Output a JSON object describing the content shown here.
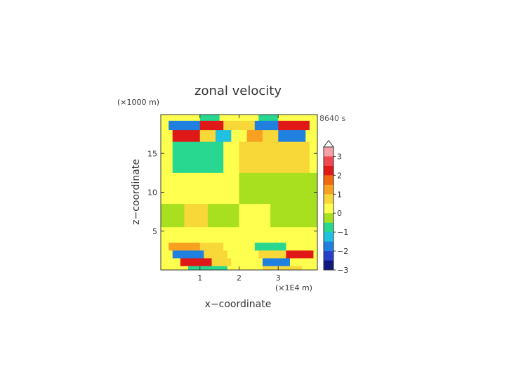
{
  "chart_data": {
    "type": "heatmap",
    "title": "zonal velocity",
    "xlabel": "x−coordinate",
    "ylabel": "z−coordinate",
    "x_unit": "(×1E4 m)",
    "y_unit": "(×1000 m)",
    "time_label": "8640 s",
    "xlim": [
      0,
      4
    ],
    "ylim": [
      0,
      20
    ],
    "x_ticks": [
      1,
      2,
      3
    ],
    "y_ticks": [
      5,
      10,
      15
    ],
    "colorbar": {
      "ticks": [
        3,
        2,
        1,
        0,
        -1,
        -2,
        -3
      ],
      "levels": [
        {
          "min": 3.5,
          "color": "#ffffff"
        },
        {
          "min": 3.0,
          "color": "#f8a0a8"
        },
        {
          "min": 2.5,
          "color": "#f04850"
        },
        {
          "min": 2.0,
          "color": "#e01818"
        },
        {
          "min": 1.5,
          "color": "#f06a10"
        },
        {
          "min": 1.0,
          "color": "#f8a020"
        },
        {
          "min": 0.5,
          "color": "#f8d838"
        },
        {
          "min": 0.0,
          "color": "#ffff50"
        },
        {
          "min": -0.5,
          "color": "#a8e020"
        },
        {
          "min": -1.0,
          "color": "#28d890"
        },
        {
          "min": -1.5,
          "color": "#20c0e0"
        },
        {
          "min": -2.0,
          "color": "#2080e0"
        },
        {
          "min": -2.5,
          "color": "#2840c8"
        },
        {
          "min": -3.0,
          "color": "#101880"
        }
      ]
    },
    "field": {
      "rows_top_to_bottom": [
        {
          "z": [
            19.2,
            20.0
          ],
          "segments": [
            [
              0,
              1.0,
              0.2
            ],
            [
              1.0,
              1.5,
              -1.0
            ],
            [
              1.5,
              2.0,
              0.3
            ],
            [
              2.0,
              2.5,
              0.3
            ],
            [
              2.5,
              3.0,
              -1.0
            ],
            [
              3.0,
              4.0,
              0.2
            ]
          ]
        },
        {
          "z": [
            18.0,
            19.2
          ],
          "segments": [
            [
              0,
              0.2,
              0.4
            ],
            [
              0.2,
              1.0,
              -1.6
            ],
            [
              1.0,
              1.6,
              2.2
            ],
            [
              1.6,
              2.0,
              0.5
            ],
            [
              2.0,
              2.4,
              0.5
            ],
            [
              2.4,
              3.0,
              -1.6
            ],
            [
              3.0,
              3.8,
              2.2
            ],
            [
              3.8,
              4.0,
              0.4
            ]
          ]
        },
        {
          "z": [
            16.5,
            18.0
          ],
          "segments": [
            [
              0,
              0.3,
              0.4
            ],
            [
              0.3,
              1.0,
              2.1
            ],
            [
              1.0,
              1.4,
              0.5
            ],
            [
              1.4,
              1.8,
              -1.2
            ],
            [
              1.8,
              2.2,
              0.4
            ],
            [
              2.2,
              2.6,
              1.1
            ],
            [
              2.6,
              3.0,
              0.5
            ],
            [
              3.0,
              3.7,
              -1.6
            ],
            [
              3.7,
              4.0,
              0.3
            ]
          ]
        },
        {
          "z": [
            12.5,
            16.5
          ],
          "segments": [
            [
              0,
              0.3,
              0.2
            ],
            [
              0.3,
              1.6,
              -0.9
            ],
            [
              1.6,
              2.0,
              0.2
            ],
            [
              2.0,
              2.6,
              0.6
            ],
            [
              2.6,
              3.8,
              0.9
            ],
            [
              3.8,
              4.0,
              0.2
            ]
          ]
        },
        {
          "z": [
            8.5,
            12.5
          ],
          "segments": [
            [
              0,
              2.0,
              0.2
            ],
            [
              2.0,
              4.0,
              -0.3
            ]
          ]
        },
        {
          "z": [
            5.5,
            8.5
          ],
          "segments": [
            [
              0,
              0.6,
              -0.3
            ],
            [
              0.6,
              1.2,
              0.6
            ],
            [
              1.2,
              2.0,
              -0.3
            ],
            [
              2.0,
              2.8,
              0.2
            ],
            [
              2.8,
              4.0,
              -0.3
            ]
          ]
        },
        {
          "z": [
            3.5,
            5.5
          ],
          "segments": [
            [
              0,
              2.0,
              0.2
            ],
            [
              2.0,
              4.0,
              0.2
            ]
          ]
        },
        {
          "z": [
            2.5,
            3.5
          ],
          "segments": [
            [
              0,
              0.2,
              0.3
            ],
            [
              0.2,
              1.0,
              1.3
            ],
            [
              1.0,
              1.6,
              0.6
            ],
            [
              1.6,
              2.4,
              0.2
            ],
            [
              2.4,
              3.2,
              -0.8
            ],
            [
              3.2,
              4.0,
              0.3
            ]
          ]
        },
        {
          "z": [
            1.5,
            2.5
          ],
          "segments": [
            [
              0,
              0.3,
              0.3
            ],
            [
              0.3,
              1.1,
              -1.8
            ],
            [
              1.1,
              1.7,
              0.6
            ],
            [
              1.7,
              2.5,
              0.3
            ],
            [
              2.5,
              3.2,
              0.6
            ],
            [
              3.2,
              3.9,
              2.2
            ],
            [
              3.9,
              4.0,
              0.3
            ]
          ]
        },
        {
          "z": [
            0.5,
            1.5
          ],
          "segments": [
            [
              0,
              0.5,
              0.3
            ],
            [
              0.5,
              1.3,
              2.2
            ],
            [
              1.3,
              1.8,
              0.5
            ],
            [
              1.8,
              2.6,
              0.3
            ],
            [
              2.6,
              3.3,
              -1.6
            ],
            [
              3.3,
              4.0,
              0.3
            ]
          ]
        },
        {
          "z": [
            0.0,
            0.5
          ],
          "segments": [
            [
              0,
              0.7,
              0.2
            ],
            [
              0.7,
              1.7,
              -0.8
            ],
            [
              1.7,
              2.6,
              0.2
            ],
            [
              2.6,
              3.6,
              0.6
            ],
            [
              3.6,
              4.0,
              0.2
            ]
          ]
        }
      ]
    }
  }
}
